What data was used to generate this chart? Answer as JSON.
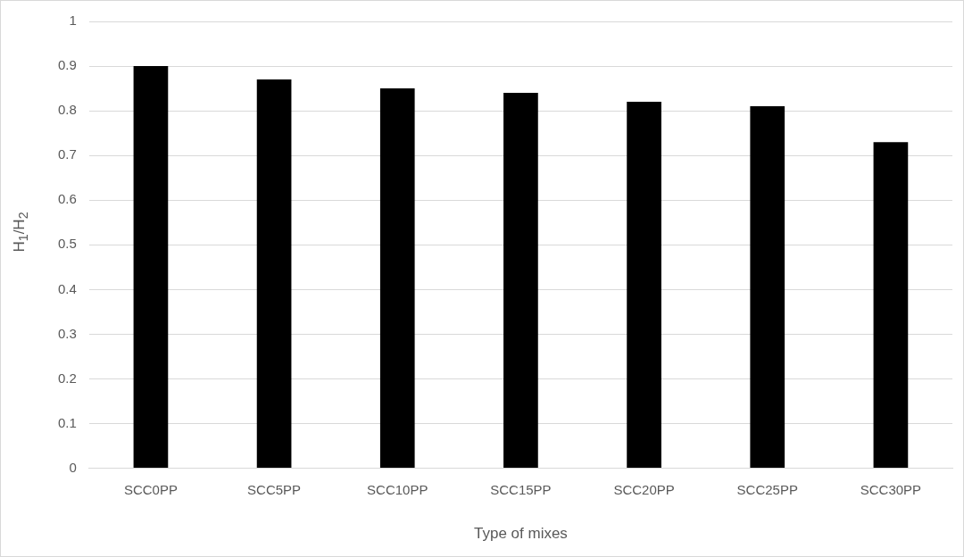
{
  "chart_data": {
    "type": "bar",
    "xlabel": "Type of mixes",
    "ylabel": "H$_{1}$/H$_{2}$",
    "categories": [
      "SCC0PP",
      "SCC5PP",
      "SCC10PP",
      "SCC15PP",
      "SCC20PP",
      "SCC25PP",
      "SCC30PP"
    ],
    "values": [
      0.9,
      0.87,
      0.85,
      0.84,
      0.82,
      0.81,
      0.73
    ],
    "color": "#000000",
    "ylim": [
      0,
      1
    ],
    "yticks": [
      0,
      0.1,
      0.2,
      0.3,
      0.4,
      0.5,
      0.6,
      0.7,
      0.8,
      0.9,
      1
    ],
    "grid": "y",
    "legend": false
  }
}
